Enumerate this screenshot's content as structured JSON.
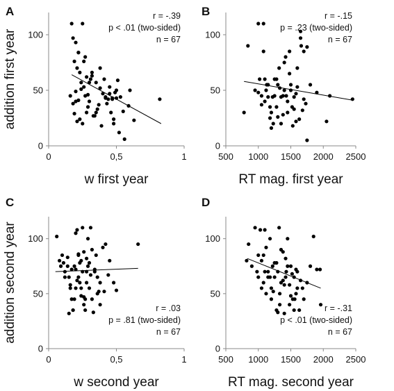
{
  "chart_data": [
    {
      "type": "scatter",
      "panel": "A",
      "xlabel": "w first year",
      "ylabel": "addition first year",
      "xlim": [
        0,
        1
      ],
      "ylim": [
        0,
        120
      ],
      "xticks": [
        "0",
        "0,5",
        "1"
      ],
      "yticks": [
        "0",
        "50",
        "100"
      ],
      "stats": [
        "r = -.39",
        "p < .01 (two-sided)",
        "n = 67"
      ],
      "trend": {
        "x": [
          0.17,
          0.83
        ],
        "y": [
          64,
          20
        ]
      },
      "x": [
        0.17,
        0.18,
        0.2,
        0.22,
        0.25,
        0.28,
        0.19,
        0.21,
        0.23,
        0.16,
        0.24,
        0.27,
        0.3,
        0.32,
        0.26,
        0.2,
        0.22,
        0.18,
        0.29,
        0.31,
        0.35,
        0.38,
        0.4,
        0.42,
        0.44,
        0.46,
        0.48,
        0.5,
        0.52,
        0.34,
        0.36,
        0.41,
        0.45,
        0.49,
        0.53,
        0.56,
        0.6,
        0.63,
        0.47,
        0.43,
        0.39,
        0.33,
        0.3,
        0.28,
        0.25,
        0.23,
        0.21,
        0.19,
        0.24,
        0.27,
        0.37,
        0.51,
        0.55,
        0.59,
        0.45,
        0.48,
        0.82,
        0.42,
        0.38,
        0.35,
        0.32,
        0.26,
        0.29,
        0.22,
        0.2,
        0.5,
        0.47
      ],
      "y": [
        110,
        97,
        93,
        84,
        110,
        62,
        76,
        70,
        66,
        45,
        57,
        80,
        57,
        63,
        53,
        49,
        41,
        38,
        35,
        60,
        57,
        52,
        47,
        44,
        42,
        30,
        24,
        43,
        12,
        27,
        33,
        60,
        53,
        48,
        44,
        6,
        50,
        23,
        42,
        38,
        18,
        27,
        40,
        30,
        20,
        24,
        22,
        29,
        51,
        45,
        37,
        59,
        31,
        36,
        47,
        20,
        42,
        43,
        70,
        30,
        66,
        76,
        46,
        84,
        40,
        50,
        43
      ]
    },
    {
      "type": "scatter",
      "panel": "B",
      "xlabel": "RT mag. first year",
      "ylabel": "",
      "xlim": [
        500,
        2500
      ],
      "ylim": [
        0,
        120
      ],
      "xticks": [
        "500",
        "1000",
        "1500",
        "2000",
        "2500"
      ],
      "yticks": [
        "0",
        "50",
        "100"
      ],
      "stats": [
        "r = -.15",
        "p = .23 (two-sided)",
        "n = 67"
      ],
      "trend": {
        "x": [
          780,
          2460
        ],
        "y": [
          58,
          41
        ]
      },
      "x": [
        780,
        840,
        950,
        1000,
        1020,
        1050,
        1080,
        1100,
        1120,
        1150,
        1180,
        1200,
        1220,
        1250,
        1280,
        1300,
        1320,
        1350,
        1380,
        1400,
        1420,
        1450,
        1480,
        1500,
        1520,
        1550,
        1580,
        1600,
        1650,
        1700,
        1750,
        1800,
        1050,
        1100,
        1150,
        1200,
        1250,
        1300,
        1350,
        1400,
        1450,
        1500,
        1550,
        1600,
        1650,
        1700,
        1000,
        1080,
        1130,
        1180,
        1230,
        1280,
        1330,
        1380,
        1430,
        1480,
        1530,
        1580,
        1630,
        1680,
        1730,
        1900,
        2050,
        2450,
        2100,
        1750,
        1660
      ],
      "y": [
        30,
        90,
        50,
        110,
        60,
        45,
        110,
        40,
        50,
        55,
        25,
        16,
        44,
        60,
        35,
        26,
        70,
        44,
        45,
        50,
        80,
        30,
        85,
        55,
        35,
        44,
        22,
        70,
        103,
        85,
        5,
        55,
        37,
        60,
        44,
        30,
        45,
        55,
        20,
        75,
        40,
        50,
        33,
        53,
        97,
        42,
        48,
        85,
        55,
        35,
        20,
        60,
        52,
        28,
        45,
        65,
        18,
        47,
        24,
        32,
        38,
        48,
        22,
        42,
        45,
        89,
        90
      ]
    },
    {
      "type": "scatter",
      "panel": "C",
      "xlabel": "w second year",
      "ylabel": "addition second year",
      "xlim": [
        0,
        1
      ],
      "ylim": [
        0,
        120
      ],
      "xticks": [
        "0",
        "0,5",
        "1"
      ],
      "yticks": [
        "0",
        "50",
        "100"
      ],
      "stats": [
        "r = .03",
        "p = .81 (two-sided)",
        "n = 67"
      ],
      "trend": {
        "x": [
          0.05,
          0.66
        ],
        "y": [
          70,
          73
        ]
      },
      "x": [
        0.06,
        0.08,
        0.1,
        0.12,
        0.14,
        0.15,
        0.16,
        0.17,
        0.18,
        0.19,
        0.2,
        0.21,
        0.22,
        0.23,
        0.24,
        0.25,
        0.26,
        0.27,
        0.28,
        0.29,
        0.3,
        0.31,
        0.32,
        0.33,
        0.34,
        0.35,
        0.36,
        0.37,
        0.38,
        0.4,
        0.42,
        0.45,
        0.48,
        0.5,
        0.66,
        0.15,
        0.17,
        0.19,
        0.21,
        0.23,
        0.25,
        0.27,
        0.29,
        0.31,
        0.18,
        0.2,
        0.22,
        0.24,
        0.26,
        0.28,
        0.3,
        0.12,
        0.14,
        0.16,
        0.2,
        0.22,
        0.24,
        0.26,
        0.28,
        0.32,
        0.34,
        0.36,
        0.09,
        0.11,
        0.38,
        0.41,
        0.44
      ],
      "y": [
        102,
        80,
        85,
        65,
        75,
        65,
        55,
        45,
        35,
        75,
        55,
        108,
        85,
        60,
        48,
        110,
        88,
        35,
        70,
        100,
        55,
        110,
        45,
        33,
        70,
        85,
        50,
        52,
        40,
        92,
        95,
        80,
        60,
        53,
        95,
        32,
        72,
        45,
        62,
        78,
        70,
        45,
        75,
        67,
        35,
        105,
        86,
        80,
        40,
        60,
        78,
        70,
        83,
        58,
        72,
        65,
        55,
        47,
        82,
        90,
        72,
        65,
        75,
        78,
        60,
        52,
        67
      ]
    },
    {
      "type": "scatter",
      "panel": "D",
      "xlabel": "RT mag. second year",
      "ylabel": "",
      "xlim": [
        500,
        2500
      ],
      "ylim": [
        0,
        120
      ],
      "xticks": [
        "500",
        "1000",
        "1500",
        "2000",
        "2500"
      ],
      "yticks": [
        "0",
        "50",
        "100"
      ],
      "stats": [
        "r = -.31",
        "p < .01 (two-sided)",
        "n = 67"
      ],
      "trend": {
        "x": [
          830,
          1960
        ],
        "y": [
          82,
          55
        ]
      },
      "x": [
        820,
        850,
        900,
        950,
        980,
        1000,
        1030,
        1050,
        1080,
        1100,
        1120,
        1150,
        1180,
        1200,
        1220,
        1250,
        1280,
        1300,
        1320,
        1350,
        1380,
        1400,
        1420,
        1450,
        1480,
        1500,
        1520,
        1550,
        1580,
        1600,
        1650,
        1700,
        1750,
        1800,
        1850,
        1900,
        1950,
        1960,
        1050,
        1080,
        1100,
        1150,
        1200,
        1250,
        1300,
        1350,
        1400,
        1450,
        1500,
        1550,
        1600,
        1000,
        1120,
        1180,
        1230,
        1280,
        1330,
        1380,
        1430,
        1480,
        1530,
        1580,
        1630,
        1330,
        1420,
        1560,
        1680
      ],
      "y": [
        80,
        95,
        75,
        110,
        70,
        65,
        108,
        55,
        85,
        70,
        50,
        65,
        100,
        45,
        75,
        78,
        35,
        70,
        110,
        60,
        88,
        32,
        65,
        100,
        40,
        75,
        68,
        35,
        50,
        55,
        62,
        45,
        60,
        75,
        102,
        72,
        72,
        40,
        80,
        60,
        108,
        70,
        55,
        65,
        33,
        90,
        58,
        75,
        48,
        65,
        70,
        85,
        92,
        65,
        52,
        78,
        40,
        62,
        70,
        58,
        45,
        72,
        35,
        50,
        82,
        45,
        55
      ]
    }
  ]
}
